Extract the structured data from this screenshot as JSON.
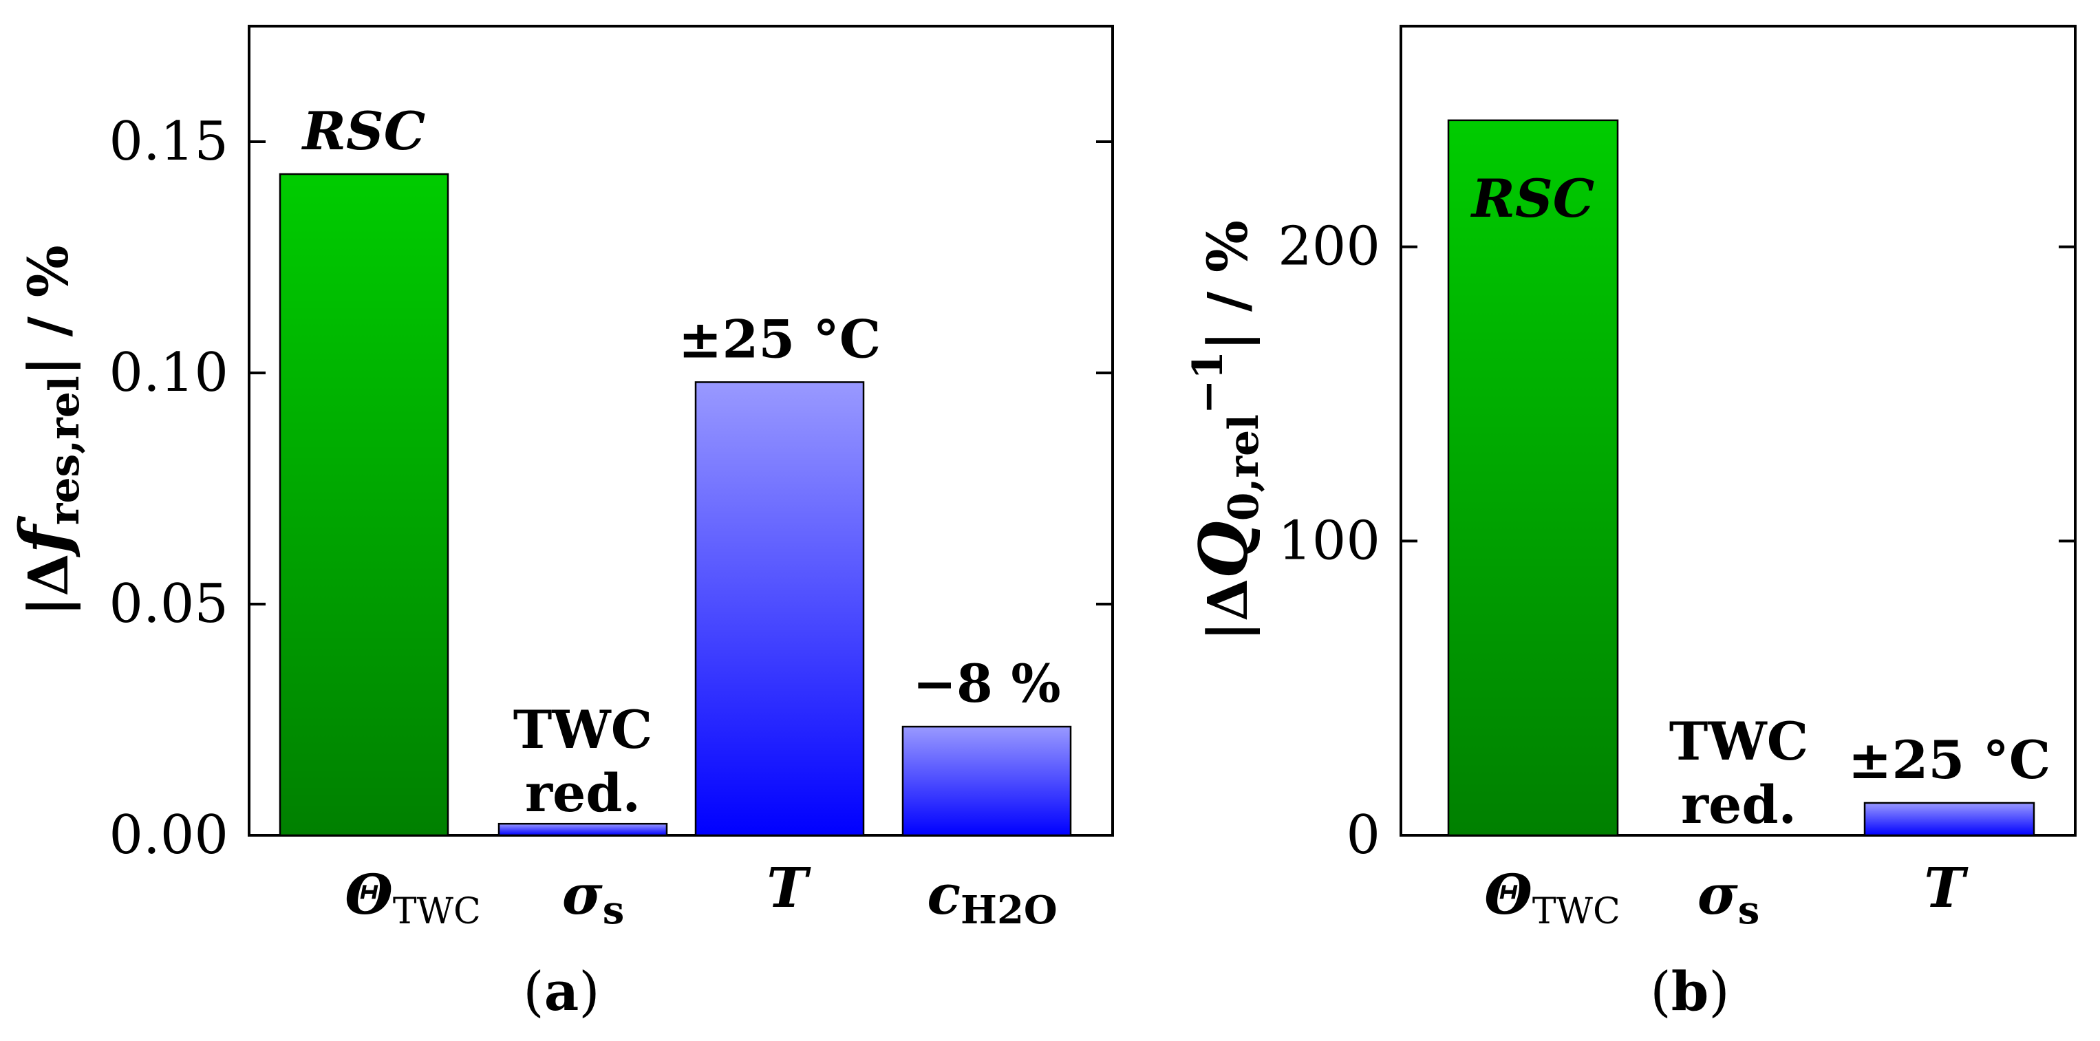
{
  "chart_data": [
    {
      "panel": "a",
      "type": "bar",
      "panel_label": "(a)",
      "ylabel": "|Δf_res,rel| / %",
      "ylim": [
        0,
        0.175
      ],
      "yticks": [
        0,
        0.05,
        0.1,
        0.15
      ],
      "ytick_labels": [
        "0.00",
        "0.05",
        "0.10",
        "0.15"
      ],
      "grid": false,
      "categories": [
        "Θ_TWC",
        "σ_s",
        "T",
        "c_H2O"
      ],
      "values": [
        0.143,
        0.0025,
        0.098,
        0.0235
      ],
      "colors": [
        "green",
        "blue",
        "blue",
        "blue"
      ],
      "annotations": [
        "RSC",
        "TWC red.",
        "±25 °C",
        "−8 %"
      ]
    },
    {
      "panel": "b",
      "type": "bar",
      "panel_label": "(b)",
      "ylabel": "|ΔQ_0,rel^−1| / %",
      "ylim": [
        0,
        275
      ],
      "yticks": [
        0,
        100,
        200
      ],
      "ytick_labels": [
        "0",
        "100",
        "200"
      ],
      "grid": false,
      "categories": [
        "Θ_TWC",
        "σ_s",
        "T"
      ],
      "values": [
        243,
        0,
        11
      ],
      "colors": [
        "green",
        "blue",
        "blue"
      ],
      "annotations": [
        "RSC",
        "TWC red.",
        "±25 °C"
      ]
    }
  ],
  "colors": {
    "green_top": "#00cc00",
    "green_bottom": "#008000",
    "blue_top": "#9999ff",
    "blue_bottom": "#0000ff",
    "axis": "#000000"
  }
}
